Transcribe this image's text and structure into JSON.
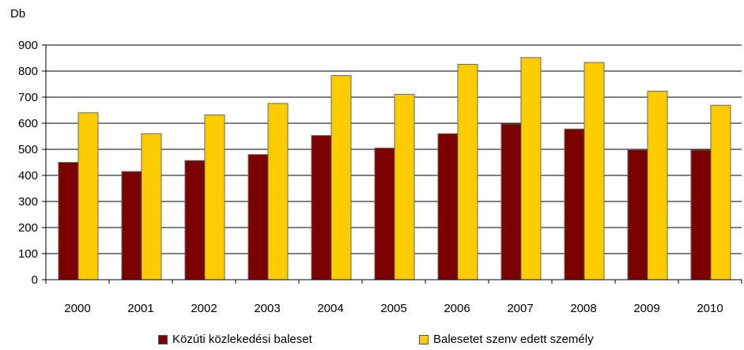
{
  "chart_data": {
    "type": "bar",
    "unit_label": "Db",
    "categories": [
      "2000",
      "2001",
      "2002",
      "2003",
      "2004",
      "2005",
      "2006",
      "2007",
      "2008",
      "2009",
      "2010"
    ],
    "series": [
      {
        "name": "Közúti közlekedési baleset",
        "color": "#7b0000",
        "values": [
          450,
          415,
          457,
          480,
          553,
          505,
          560,
          597,
          578,
          498,
          497
        ]
      },
      {
        "name": "Balesetet szenv edett személy",
        "color": "#ffcc00",
        "values": [
          640,
          560,
          632,
          676,
          783,
          711,
          826,
          852,
          833,
          723,
          669
        ]
      }
    ],
    "ylim": [
      0,
      900
    ],
    "yticks": [
      0,
      100,
      200,
      300,
      400,
      500,
      600,
      700,
      800,
      900
    ],
    "grid": true,
    "legend_position": "bottom"
  }
}
